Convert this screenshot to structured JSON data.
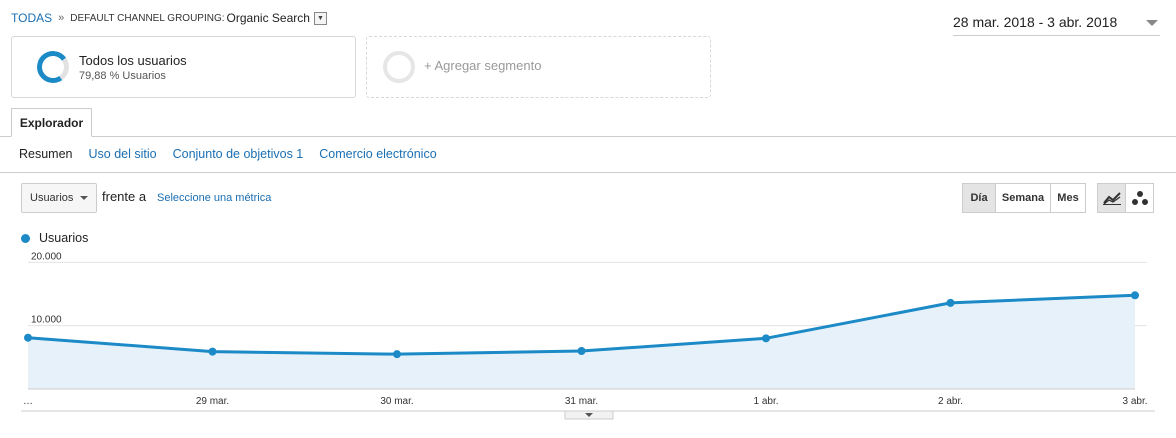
{
  "breadcrumb": {
    "root": "TODAS",
    "separator": "»",
    "dimension": "DEFAULT CHANNEL GROUPING:",
    "value": "Organic Search",
    "dropdown_icon": "caret-down-icon"
  },
  "date_range": "28 mar. 2018 - 3 abr. 2018",
  "segments": [
    {
      "title": "Todos los usuarios",
      "subtitle": "79,88 % Usuarios"
    },
    {
      "title": "+ Agregar segmento"
    }
  ],
  "tabs": [
    "Explorador"
  ],
  "subnav": [
    "Resumen",
    "Uso del sitio",
    "Conjunto de objetivos 1",
    "Comercio electrónico"
  ],
  "controls": {
    "metric": "Usuarios",
    "versus": "frente a",
    "select_metric": "Seleccione una métrica",
    "periods": [
      "Día",
      "Semana",
      "Mes"
    ],
    "selected_period": "Día",
    "view_icons": [
      "line-chart-icon",
      "motion-chart-icon"
    ]
  },
  "legend": "Usuarios",
  "colors": {
    "accent": "#1b8ac6",
    "link": "#1a6fb3",
    "area_fill": "#e7f1fa"
  },
  "chart_data": {
    "type": "area",
    "series": [
      {
        "name": "Usuarios",
        "values": [
          8100,
          5900,
          5500,
          6000,
          8000,
          13600,
          14800
        ]
      }
    ],
    "categories": [
      "…",
      "29 mar.",
      "30 mar.",
      "31 mar.",
      "1 abr.",
      "2 abr.",
      "3 abr."
    ],
    "y_tick_labels": [
      "20.000",
      "10.000"
    ],
    "y_ticks": [
      20000,
      10000
    ],
    "ylim": [
      0,
      21000
    ],
    "grid": true
  }
}
